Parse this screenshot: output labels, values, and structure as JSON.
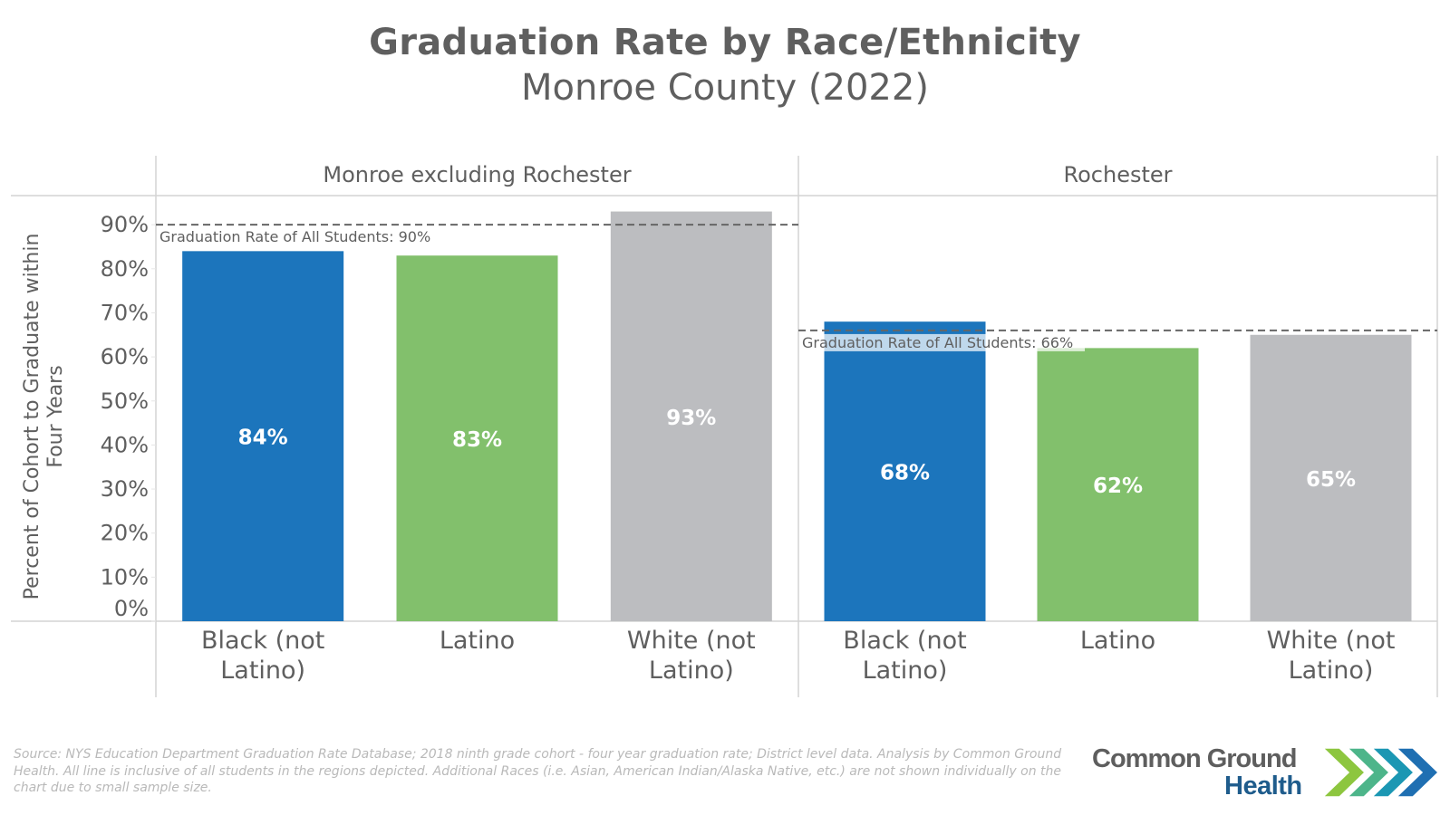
{
  "header": {
    "title": "Graduation Rate by Race/Ethnicity",
    "subtitle": "Monroe County (2022)"
  },
  "chart_data": {
    "type": "bar",
    "title": "Graduation Rate by Race/Ethnicity",
    "subtitle": "Monroe County (2022)",
    "ylabel": "Percent of Cohort to Graduate within Four Years",
    "ylabel_lines": [
      "Percent of Cohort to Graduate within",
      "Four Years"
    ],
    "xlabel": "",
    "ylim": [
      0,
      100
    ],
    "yticks": [
      0,
      10,
      20,
      30,
      40,
      50,
      60,
      70,
      80,
      90
    ],
    "ytick_labels": [
      "0%",
      "10%",
      "20%",
      "30%",
      "40%",
      "50%",
      "60%",
      "70%",
      "80%",
      "90%"
    ],
    "grid": false,
    "legend": "none",
    "categories": [
      [
        "Black (not",
        "Latino)"
      ],
      [
        "Latino"
      ],
      [
        "White (not",
        "Latino)"
      ]
    ],
    "category_colors": [
      "#1c75bc",
      "#82c06c",
      "#bcbdc0"
    ],
    "panels": [
      {
        "name": "Monroe excluding Rochester",
        "values": [
          84,
          83,
          93
        ],
        "labels": [
          "84%",
          "83%",
          "93%"
        ],
        "reference": {
          "value": 90,
          "label": "Graduation Rate of All Students: 90%"
        }
      },
      {
        "name": "Rochester",
        "values": [
          68,
          62,
          65
        ],
        "labels": [
          "68%",
          "62%",
          "65%"
        ],
        "reference": {
          "value": 66,
          "label": "Graduation Rate of All Students: 66%"
        }
      }
    ]
  },
  "footer": {
    "source": "Source: NYS Education Department Graduation Rate Database; 2018 ninth grade cohort - four year graduation rate; District level data. Analysis by Common Ground Health. All line is inclusive of all students in the regions depicted. Additional Races (i.e. Asian, American Indian/Alaska Native, etc.) are not shown individually on the chart due to small sample size.",
    "logo_line1": "Common Ground",
    "logo_line2": "Health",
    "logo_colors": [
      "#8dc63f",
      "#4db58a",
      "#1b97b3",
      "#1f6fb2",
      "#1c4f8c"
    ]
  }
}
